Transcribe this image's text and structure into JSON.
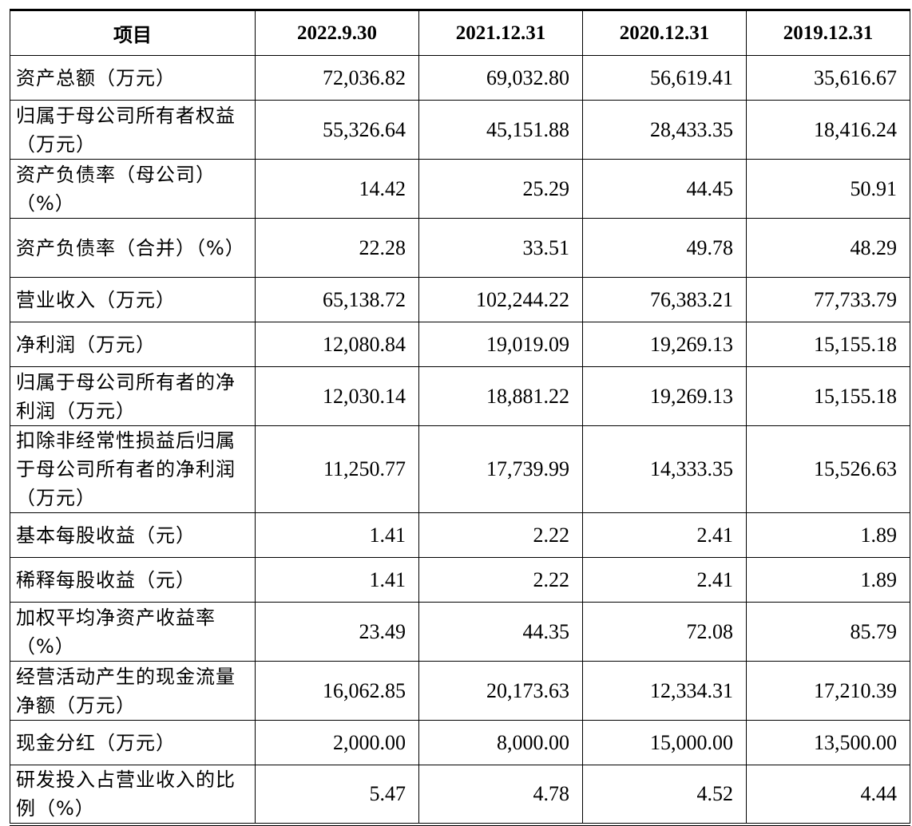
{
  "table": {
    "headers": [
      "项目",
      "2022.9.30",
      "2021.12.31",
      "2020.12.31",
      "2019.12.31"
    ],
    "rows": [
      {
        "label": "资产总额（万元）",
        "values": [
          "72,036.82",
          "69,032.80",
          "56,619.41",
          "35,616.67"
        ]
      },
      {
        "label": "归属于母公司所有者权益（万元）",
        "values": [
          "55,326.64",
          "45,151.88",
          "28,433.35",
          "18,416.24"
        ]
      },
      {
        "label": "资产负债率（母公司）（%）",
        "values": [
          "14.42",
          "25.29",
          "44.45",
          "50.91"
        ]
      },
      {
        "label": "资产负债率（合并）（%）",
        "values": [
          "22.28",
          "33.51",
          "49.78",
          "48.29"
        ]
      },
      {
        "label": "营业收入（万元）",
        "values": [
          "65,138.72",
          "102,244.22",
          "76,383.21",
          "77,733.79"
        ]
      },
      {
        "label": "净利润（万元）",
        "values": [
          "12,080.84",
          "19,019.09",
          "19,269.13",
          "15,155.18"
        ]
      },
      {
        "label": "归属于母公司所有者的净利润（万元）",
        "values": [
          "12,030.14",
          "18,881.22",
          "19,269.13",
          "15,155.18"
        ]
      },
      {
        "label": "扣除非经常性损益后归属于母公司所有者的净利润（万元）",
        "values": [
          "11,250.77",
          "17,739.99",
          "14,333.35",
          "15,526.63"
        ]
      },
      {
        "label": "基本每股收益（元）",
        "values": [
          "1.41",
          "2.22",
          "2.41",
          "1.89"
        ]
      },
      {
        "label": "稀释每股收益（元）",
        "values": [
          "1.41",
          "2.22",
          "2.41",
          "1.89"
        ]
      },
      {
        "label": "加权平均净资产收益率（%）",
        "values": [
          "23.49",
          "44.35",
          "72.08",
          "85.79"
        ]
      },
      {
        "label": "经营活动产生的现金流量净额（万元）",
        "values": [
          "16,062.85",
          "20,173.63",
          "12,334.31",
          "17,210.39"
        ]
      },
      {
        "label": "现金分红（万元）",
        "values": [
          "2,000.00",
          "8,000.00",
          "15,000.00",
          "13,500.00"
        ]
      },
      {
        "label": "研发投入占营业收入的比例（%）",
        "values": [
          "5.47",
          "4.78",
          "4.52",
          "4.44"
        ]
      }
    ]
  }
}
